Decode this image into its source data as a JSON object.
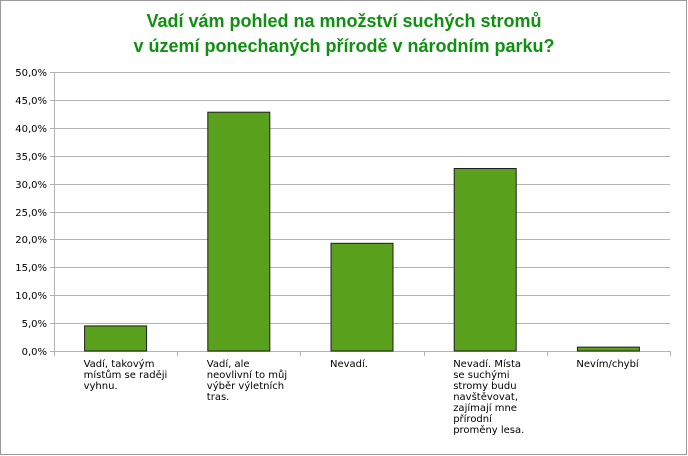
{
  "chart_data": {
    "type": "bar",
    "title_lines": [
      "Vadí vám pohled na množství suchých stromů",
      "v území ponechaných přírodě v národním parku?"
    ],
    "categories": [
      [
        "Vadí, takovým",
        "místům se raději",
        "vyhnu."
      ],
      [
        "Vadí, ale",
        "neovlivní to můj",
        "výběr výletních",
        "tras."
      ],
      [
        "Nevadí."
      ],
      [
        "Nevadí. Místa",
        "se suchými",
        "stromy budu",
        "navštěvovat,",
        "zajímají mne",
        "přírodní",
        "proměny lesa."
      ],
      [
        "Nevím/chybí"
      ]
    ],
    "values": [
      4.5,
      42.8,
      19.3,
      32.7,
      0.7
    ],
    "ylim": [
      0,
      50
    ],
    "ytick_step": 5,
    "ytick_labels": [
      "0,0%",
      "5,0%",
      "10,0%",
      "15,0%",
      "20,0%",
      "25,0%",
      "30,0%",
      "35,0%",
      "40,0%",
      "45,0%",
      "50,0%"
    ],
    "grid": true,
    "legend": "none",
    "colors": {
      "bar": "#59a01c",
      "bar_border": "#1e1e1e",
      "title": "#109010",
      "grid": "#b3b3b3"
    }
  }
}
